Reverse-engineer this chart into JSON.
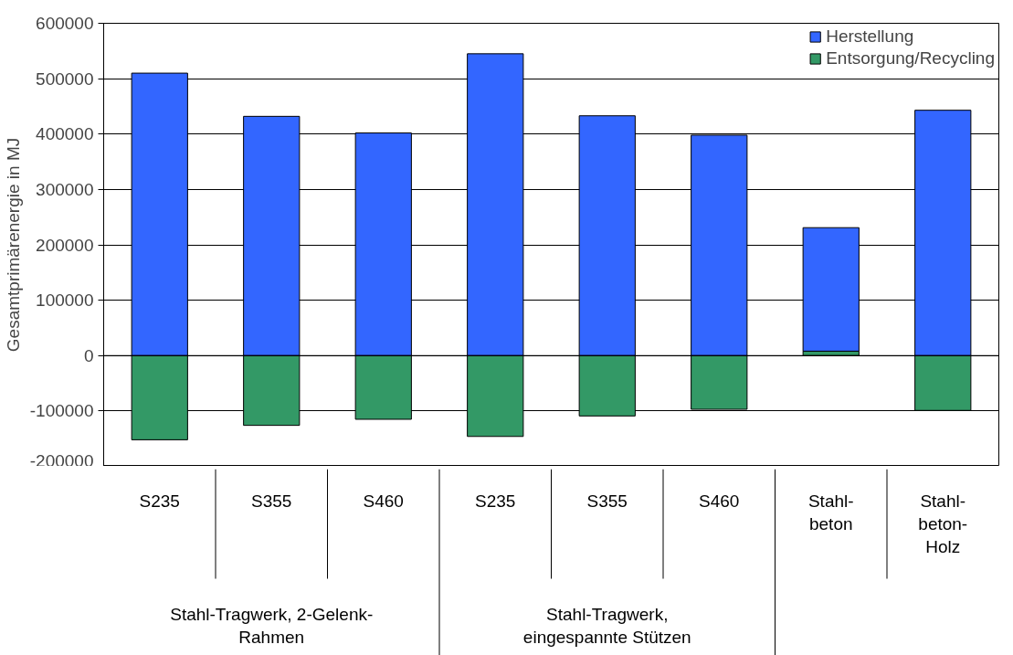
{
  "chart_data": {
    "type": "bar",
    "stacked": true,
    "ylabel": "Gesamtprimärenergie in MJ",
    "categories": [
      "S235",
      "S355",
      "S460",
      "S235",
      "S355",
      "S460",
      "Stahl-\nbeton",
      "Stahl-\nbeton-\nHolz"
    ],
    "series": [
      {
        "name": "Entsorgung/Recycling",
        "color": "#339966",
        "values": [
          -152000,
          -126000,
          -115000,
          -146000,
          -109000,
          -97000,
          8000,
          -99000
        ]
      },
      {
        "name": "Herstellung",
        "color": "#3366ff",
        "values": [
          510000,
          432000,
          402000,
          545000,
          433000,
          398000,
          223000,
          443000
        ]
      }
    ],
    "ylim": [
      -200000,
      600000
    ],
    "yticks": [
      -200000,
      -100000,
      0,
      100000,
      200000,
      300000,
      400000,
      500000,
      600000
    ],
    "grid": "y",
    "legend": "top right",
    "annotations": [
      "Stahl-Tragwerk, 2-Gelenk-\nRahmen",
      "Stahl-Tragwerk,\neingespannte Stützen"
    ]
  }
}
